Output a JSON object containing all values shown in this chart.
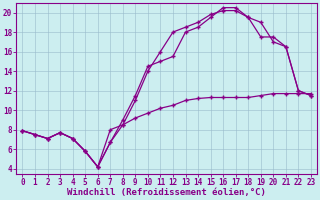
{
  "xlabel": "Windchill (Refroidissement éolien,°C)",
  "bg_color": "#cceef0",
  "line_color": "#880088",
  "xlim": [
    -0.5,
    23.5
  ],
  "ylim": [
    3.5,
    21.0
  ],
  "yticks": [
    4,
    6,
    8,
    10,
    12,
    14,
    16,
    18,
    20
  ],
  "xticks": [
    0,
    1,
    2,
    3,
    4,
    5,
    6,
    7,
    8,
    9,
    10,
    11,
    12,
    13,
    14,
    15,
    16,
    17,
    18,
    19,
    20,
    21,
    22,
    23
  ],
  "curve1_x": [
    0,
    1,
    2,
    3,
    4,
    5,
    6,
    7,
    8,
    9,
    10,
    11,
    12,
    13,
    14,
    15,
    16,
    17,
    18,
    19,
    20,
    21,
    22,
    23
  ],
  "curve1_y": [
    7.9,
    7.5,
    7.1,
    7.7,
    7.1,
    5.8,
    4.2,
    6.7,
    9.0,
    11.5,
    14.5,
    15.0,
    15.5,
    18.0,
    18.5,
    19.5,
    20.5,
    20.5,
    19.5,
    17.5,
    17.5,
    16.5,
    12.0,
    11.5
  ],
  "curve2_x": [
    0,
    1,
    2,
    3,
    4,
    5,
    6,
    7,
    8,
    9,
    10,
    11,
    12,
    13,
    14,
    15,
    16,
    17,
    18,
    19,
    20,
    21,
    22,
    23
  ],
  "curve2_y": [
    7.9,
    7.5,
    7.1,
    7.7,
    7.1,
    5.8,
    4.2,
    6.7,
    8.5,
    11.0,
    14.0,
    16.0,
    18.0,
    18.5,
    19.0,
    19.8,
    20.2,
    20.2,
    19.5,
    19.0,
    17.0,
    16.5,
    12.0,
    11.5
  ],
  "curve3_x": [
    0,
    1,
    2,
    3,
    4,
    5,
    6,
    7,
    8,
    9,
    10,
    11,
    12,
    13,
    14,
    15,
    16,
    17,
    18,
    19,
    20,
    21,
    22,
    23
  ],
  "curve3_y": [
    7.9,
    7.5,
    7.1,
    7.7,
    7.1,
    5.8,
    4.2,
    8.0,
    8.5,
    9.2,
    9.7,
    10.2,
    10.5,
    11.0,
    11.2,
    11.3,
    11.3,
    11.3,
    11.3,
    11.5,
    11.7,
    11.7,
    11.7,
    11.7
  ],
  "grid_color": "#99bbcc",
  "tick_fontsize": 5.5,
  "xlabel_fontsize": 6.5
}
